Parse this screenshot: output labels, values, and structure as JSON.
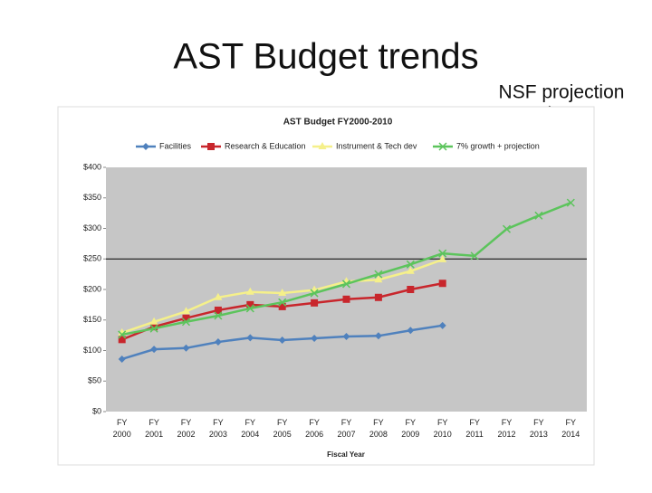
{
  "slide_title": "AST Budget trends",
  "annotation": "NSF projection",
  "chart_data": {
    "type": "line",
    "title": "AST Budget FY2000-2010",
    "x_label": "Fiscal Year",
    "categories": [
      "FY 2000",
      "FY 2001",
      "FY 2002",
      "FY 2003",
      "FY 2004",
      "FY 2005",
      "FY 2006",
      "FY 2007",
      "FY 2008",
      "FY 2009",
      "FY 2010",
      "FY 2011",
      "FY 2012",
      "FY 2013",
      "FY 2014"
    ],
    "series": [
      {
        "name": "Facilities",
        "color": "#4f81bd",
        "marker": "diamond",
        "values": [
          86,
          102,
          104,
          114,
          121,
          117,
          120,
          123,
          124,
          133,
          141,
          null,
          null,
          null,
          null
        ]
      },
      {
        "name": "Research & Education",
        "color": "#c8262c",
        "marker": "square",
        "values": [
          118,
          139,
          153,
          166,
          175,
          172,
          178,
          184,
          187,
          200,
          210,
          null,
          null,
          null,
          null
        ]
      },
      {
        "name": "Instrument & Tech dev",
        "color": "#f5f08a",
        "marker": "triangle",
        "values": [
          129,
          147,
          164,
          187,
          196,
          194,
          199,
          213,
          216,
          230,
          249,
          null,
          null,
          null,
          null
        ]
      },
      {
        "name": "7% growth + projection",
        "color": "#5cc45c",
        "marker": "x",
        "values": [
          126,
          136,
          147,
          157,
          169,
          179,
          194,
          209,
          225,
          241,
          259,
          255,
          299,
          321,
          342
        ]
      }
    ],
    "ylim": [
      0,
      400
    ],
    "yticks": [
      {
        "value": 0,
        "label": "$0"
      },
      {
        "value": 50,
        "label": "$50"
      },
      {
        "value": 100,
        "label": "$100"
      },
      {
        "value": 150,
        "label": "$150"
      },
      {
        "value": 200,
        "label": "$200"
      },
      {
        "value": 250,
        "label": "$250"
      },
      {
        "value": 300,
        "label": "$300"
      },
      {
        "value": 350,
        "label": "$350"
      },
      {
        "value": 400,
        "label": "$400"
      }
    ],
    "reference_line": 250,
    "plot_background": "#c6c6c6"
  }
}
